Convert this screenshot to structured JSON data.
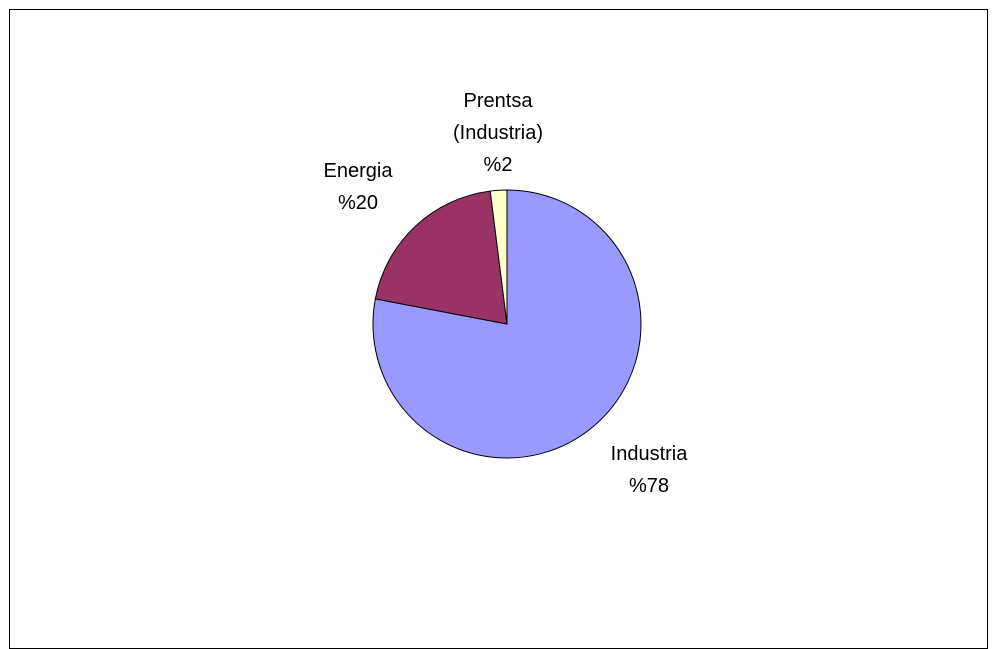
{
  "chart_data": {
    "type": "pie",
    "slices": [
      {
        "label": "Industria",
        "pct_label": "%78",
        "value": 78,
        "color": "#9999ff"
      },
      {
        "label": "Energia",
        "pct_label": "%20",
        "value": 20,
        "color": "#993366"
      },
      {
        "label": "Prentsa (Industria)",
        "label_lines": [
          "Prentsa",
          "(Industria)"
        ],
        "pct_label": "%2",
        "value": 2,
        "color": "#ffffcc"
      }
    ],
    "legend": "none"
  }
}
